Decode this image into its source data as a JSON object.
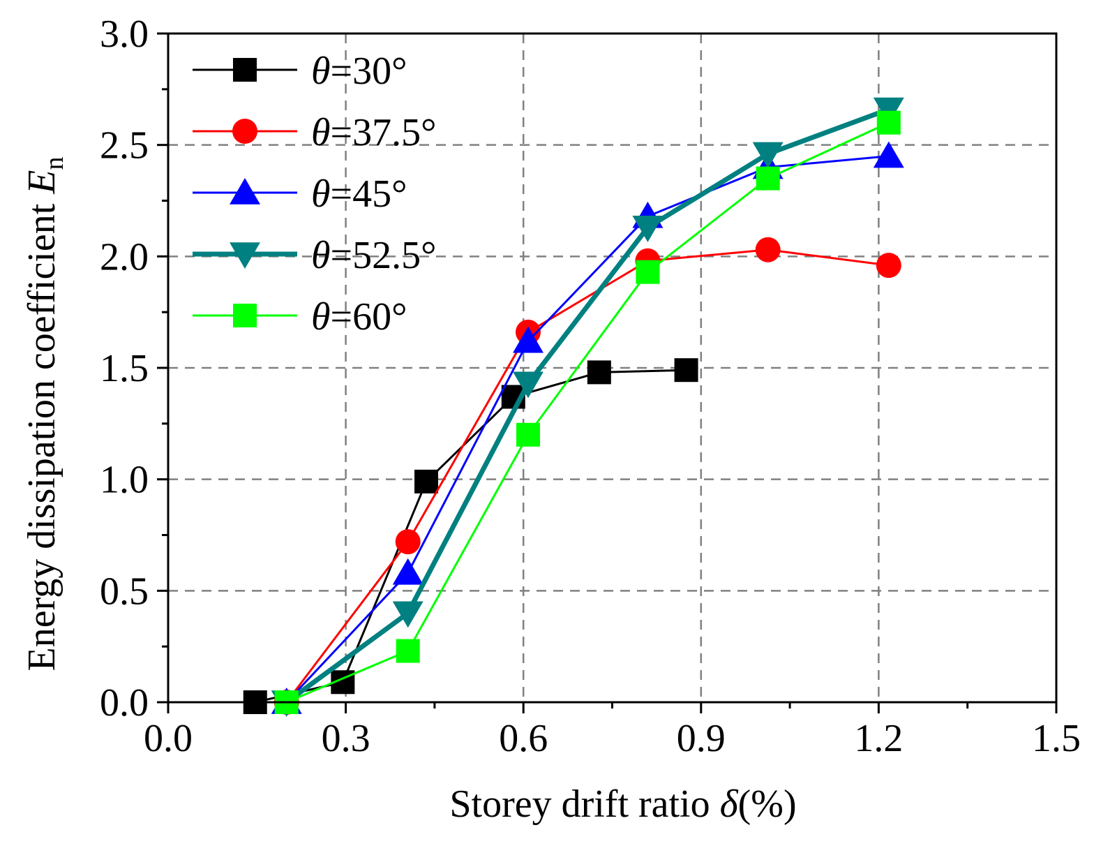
{
  "chart_data": {
    "type": "line",
    "xlabel_prefix": "Storey drift ratio ",
    "xlabel_symbol": "δ",
    "xlabel_suffix": "(%)",
    "ylabel_prefix": "Energy dissipation coefficient ",
    "ylabel_symbol": "E",
    "ylabel_subscript": "n",
    "xlim": [
      0.0,
      1.5
    ],
    "ylim": [
      0.0,
      3.0
    ],
    "xticks": [
      0.0,
      0.3,
      0.6,
      0.9,
      1.2,
      1.5
    ],
    "yticks": [
      0.0,
      0.5,
      1.0,
      1.5,
      2.0,
      2.5,
      3.0
    ],
    "xtick_labels": [
      "0.0",
      "0.3",
      "0.6",
      "0.9",
      "1.2",
      "1.5"
    ],
    "ytick_labels": [
      "0.0",
      "0.5",
      "1.0",
      "1.5",
      "2.0",
      "2.5",
      "3.0"
    ],
    "grid": "dashed",
    "legend_position": "top-left",
    "series": [
      {
        "name": "θ=30°",
        "symbol": "θ",
        "suffix": "=30°",
        "color": "#000000",
        "marker": "square",
        "line_weight": "thin",
        "x": [
          0.147,
          0.295,
          0.436,
          0.583,
          0.728,
          0.875
        ],
        "y": [
          0.0,
          0.09,
          0.99,
          1.37,
          1.48,
          1.49
        ]
      },
      {
        "name": "θ=37.5°",
        "symbol": "θ",
        "suffix": "=37.5°",
        "color": "#ff0000",
        "marker": "circle",
        "line_weight": "thin",
        "x": [
          0.2,
          0.405,
          0.608,
          0.81,
          1.013,
          1.217
        ],
        "y": [
          0.0,
          0.72,
          1.66,
          1.98,
          2.03,
          1.96
        ]
      },
      {
        "name": "θ=45°",
        "symbol": "θ",
        "suffix": "=45°",
        "color": "#0000ff",
        "marker": "triangle-up",
        "line_weight": "thin",
        "x": [
          0.2,
          0.405,
          0.608,
          0.81,
          1.013,
          1.217
        ],
        "y": [
          0.0,
          0.58,
          1.62,
          2.18,
          2.4,
          2.45
        ]
      },
      {
        "name": "θ=52.5°",
        "symbol": "θ",
        "suffix": "=52.5°",
        "color": "#008080",
        "marker": "triangle-down",
        "line_weight": "thick",
        "x": [
          0.2,
          0.405,
          0.608,
          0.81,
          1.013,
          1.217
        ],
        "y": [
          0.0,
          0.4,
          1.43,
          2.13,
          2.46,
          2.66
        ]
      },
      {
        "name": "θ=60°",
        "symbol": "θ",
        "suffix": "=60°",
        "color": "#00ff00",
        "marker": "square",
        "line_weight": "thin",
        "x": [
          0.2,
          0.405,
          0.608,
          0.81,
          1.013,
          1.217
        ],
        "y": [
          0.0,
          0.23,
          1.2,
          1.93,
          2.35,
          2.6
        ]
      }
    ]
  }
}
